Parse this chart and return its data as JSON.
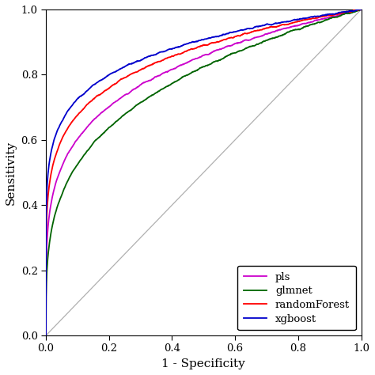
{
  "title": "",
  "xlabel": "1 - Specificity",
  "ylabel": "Sensitivity",
  "xlim": [
    0,
    1
  ],
  "ylim": [
    0,
    1
  ],
  "xticks": [
    0.0,
    0.2,
    0.4,
    0.6,
    0.8,
    1.0
  ],
  "yticks": [
    0.0,
    0.2,
    0.4,
    0.6,
    0.8,
    1.0
  ],
  "diagonal_color": "#b0b0b0",
  "background_color": "#ffffff",
  "legend_entries": [
    "pls",
    "glmnet",
    "randomForest",
    "xgboost"
  ],
  "legend_colors": [
    "#cc00cc",
    "#006400",
    "#ff0000",
    "#0000cc"
  ],
  "curve_linewidth": 1.3,
  "axis_linewidth": 0.8,
  "font_family": "DejaVu Serif",
  "pls_power": 0.22,
  "glmnet_power": 0.28,
  "rf_power": 0.17,
  "xgb_power": 0.14,
  "noise_scale": 0.006
}
